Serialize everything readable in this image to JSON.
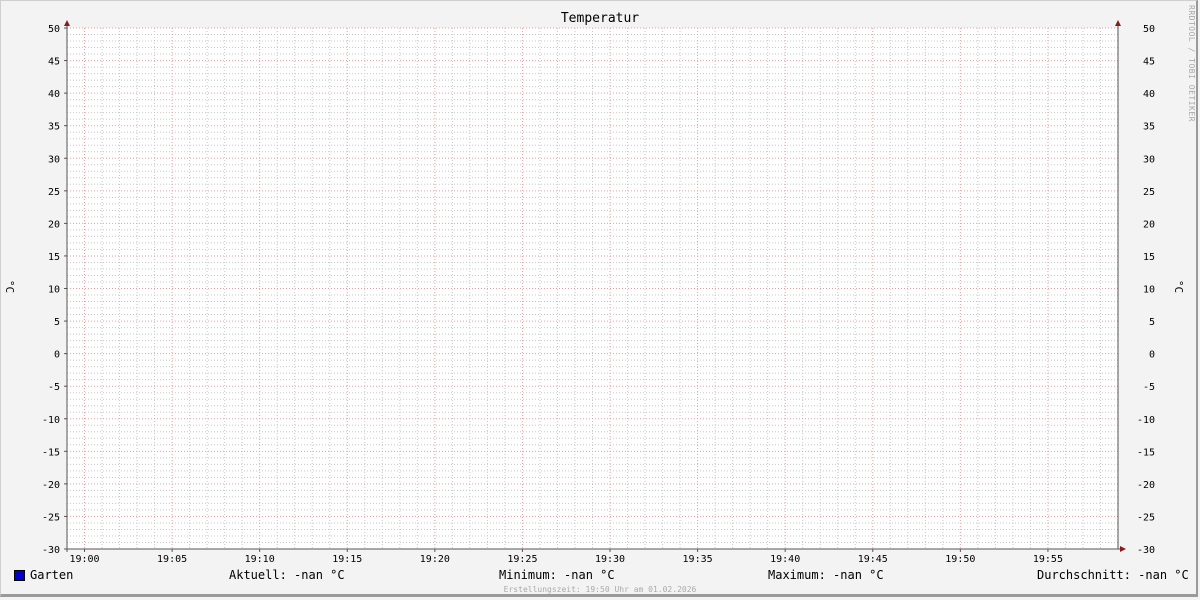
{
  "chart_data": {
    "type": "line",
    "title": "Temperatur",
    "ylabel": "°C",
    "ylabel_right": "°C",
    "ylim": [
      -30,
      50
    ],
    "y_major_step": 5,
    "y_minor_step": 1,
    "y_ticks": [
      "50",
      "45",
      "40",
      "35",
      "30",
      "25",
      "20",
      "15",
      "10",
      "5",
      "0",
      "-5",
      "-10",
      "-15",
      "-20",
      "-25",
      "-30"
    ],
    "xlim": [
      "18:59",
      "19:59"
    ],
    "x_major_step_min": 5,
    "x_minor_step_min": 1,
    "x_ticks": [
      "19:00",
      "19:05",
      "19:10",
      "19:15",
      "19:20",
      "19:25",
      "19:30",
      "19:35",
      "19:40",
      "19:45",
      "19:50",
      "19:55"
    ],
    "grid": true,
    "series": [
      {
        "name": "Garten",
        "color": "#0000cc",
        "values": []
      }
    ],
    "colors": {
      "major_grid": "#e8a0a0",
      "minor_grid": "#c8c8c8",
      "axis": "#555555",
      "arrow": "#8b1a1a"
    }
  },
  "legend": {
    "series_name": "Garten",
    "current": "Aktuell: -nan °C",
    "minimum": "Minimum: -nan °C",
    "maximum": "Maximum: -nan °C",
    "average": "Durchschnitt: -nan °C"
  },
  "watermark": "RRDTOOL / TOBI OETIKER",
  "footer": "Erstellungszeit: 19:50 Uhr am 01.02.2026"
}
